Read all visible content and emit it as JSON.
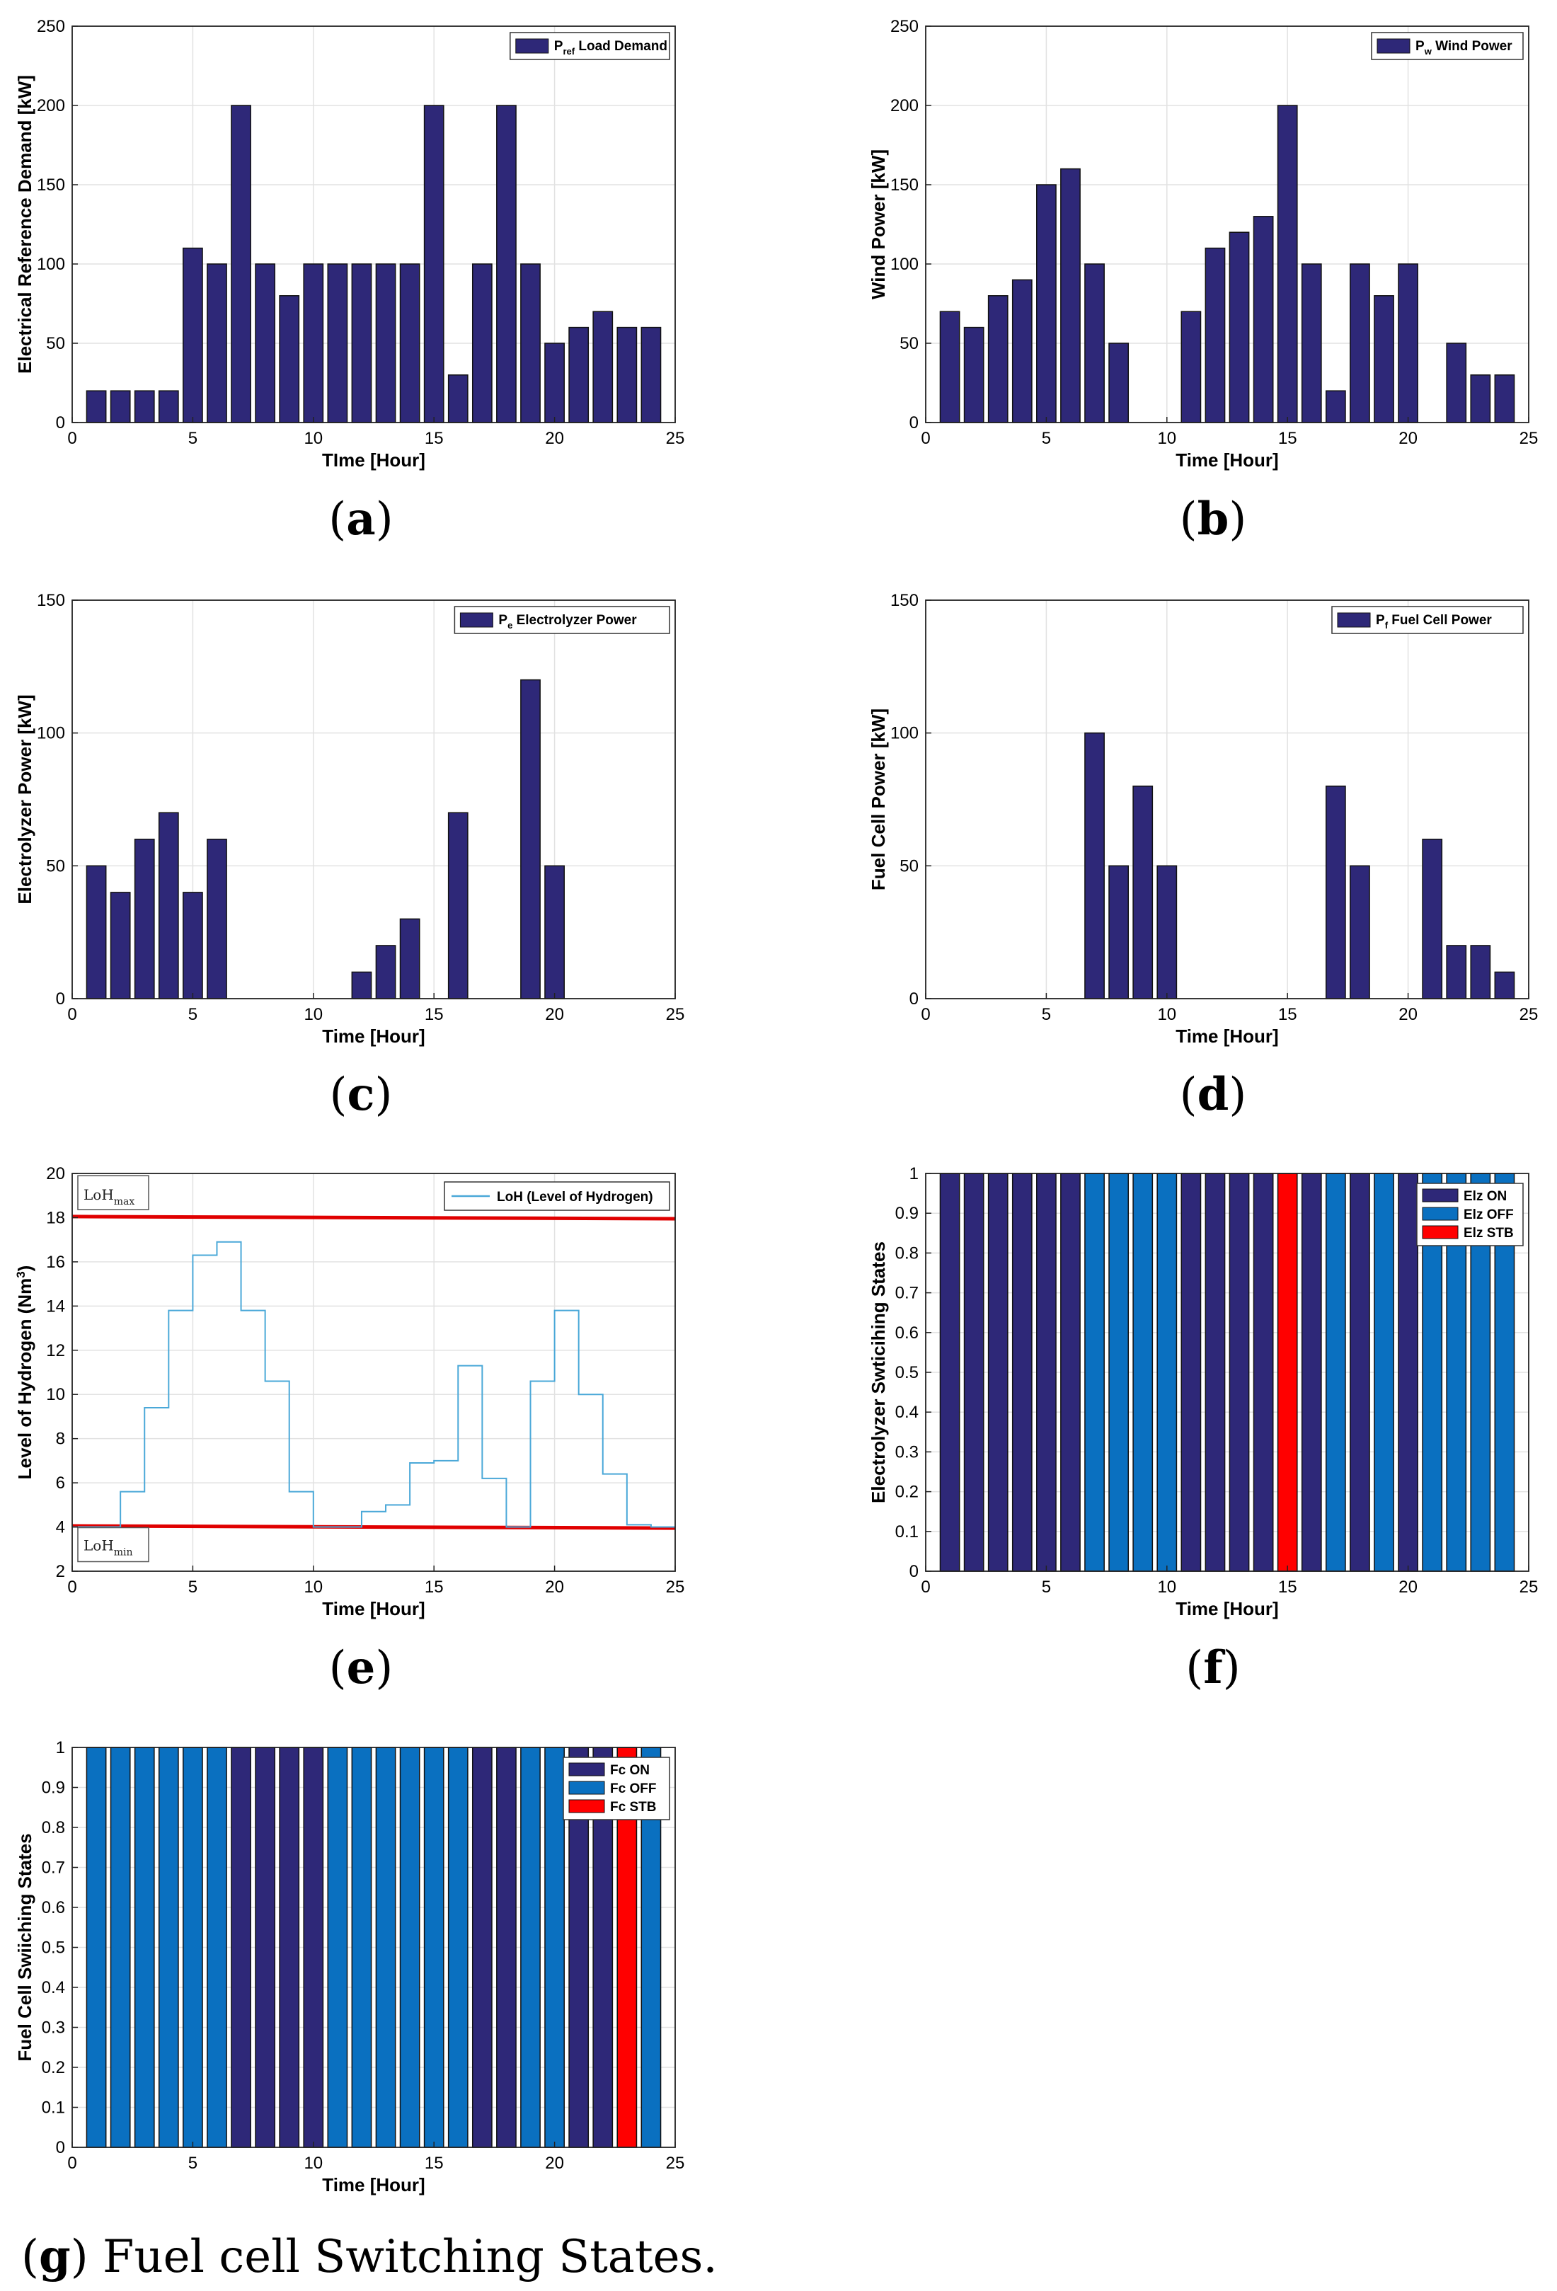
{
  "colors": {
    "bar": "#2e2878",
    "on": "#2e2878",
    "off": "#0a70c0",
    "stb": "#ff0000",
    "loh": "#4aa8d8",
    "limit": "#e00000"
  },
  "chart_data": [
    {
      "id": "a",
      "type": "bar",
      "caption_letter": "a",
      "caption_text": "",
      "title": "",
      "xlabel": "TIme [Hour]",
      "ylabel": "Electrical Reference Demand [kW]",
      "xlim": [
        0,
        25
      ],
      "ylim": [
        0,
        250
      ],
      "xticks": [
        0,
        5,
        10,
        15,
        20,
        25
      ],
      "yticks": [
        0,
        50,
        100,
        150,
        200,
        250
      ],
      "x": [
        1,
        2,
        3,
        4,
        5,
        6,
        7,
        8,
        9,
        10,
        11,
        12,
        13,
        14,
        15,
        16,
        17,
        18,
        19,
        20,
        21,
        22,
        23,
        24
      ],
      "values": [
        20,
        20,
        20,
        20,
        110,
        100,
        200,
        100,
        80,
        100,
        100,
        100,
        100,
        100,
        200,
        30,
        100,
        200,
        100,
        50,
        60,
        70,
        60,
        60
      ],
      "legend": {
        "position": "top-right",
        "symbol": "P",
        "subscript": "ref",
        "label": "Load Demand"
      }
    },
    {
      "id": "b",
      "type": "bar",
      "caption_letter": "b",
      "caption_text": "",
      "title": "",
      "xlabel": "Time [Hour]",
      "ylabel": "Wind Power [kW]",
      "xlim": [
        0,
        25
      ],
      "ylim": [
        0,
        250
      ],
      "xticks": [
        0,
        5,
        10,
        15,
        20,
        25
      ],
      "yticks": [
        0,
        50,
        100,
        150,
        200,
        250
      ],
      "x": [
        1,
        2,
        3,
        4,
        5,
        6,
        7,
        8,
        9,
        10,
        11,
        12,
        13,
        14,
        15,
        16,
        17,
        18,
        19,
        20,
        21,
        22,
        23,
        24
      ],
      "values": [
        70,
        60,
        80,
        90,
        150,
        160,
        100,
        50,
        0,
        0,
        70,
        110,
        120,
        130,
        200,
        100,
        20,
        100,
        80,
        100,
        0,
        50,
        30,
        30
      ],
      "legend": {
        "position": "top-right",
        "symbol": "P",
        "subscript": "w",
        "label": "Wind Power"
      }
    },
    {
      "id": "c",
      "type": "bar",
      "caption_letter": "c",
      "caption_text": "",
      "title": "",
      "xlabel": "Time [Hour]",
      "ylabel": "Electrolyzer Power [kW]",
      "xlim": [
        0,
        25
      ],
      "ylim": [
        0,
        150
      ],
      "xticks": [
        0,
        5,
        10,
        15,
        20,
        25
      ],
      "yticks": [
        0,
        50,
        100,
        150
      ],
      "x": [
        1,
        2,
        3,
        4,
        5,
        6,
        7,
        8,
        9,
        10,
        11,
        12,
        13,
        14,
        15,
        16,
        17,
        18,
        19,
        20,
        21,
        22,
        23,
        24
      ],
      "values": [
        50,
        40,
        60,
        70,
        40,
        60,
        0,
        0,
        0,
        0,
        0,
        10,
        20,
        30,
        0,
        70,
        0,
        0,
        120,
        50,
        0,
        0,
        0,
        0
      ],
      "legend": {
        "position": "top-right",
        "symbol": "P",
        "subscript": "e",
        "label": "Electrolyzer Power"
      }
    },
    {
      "id": "d",
      "type": "bar",
      "caption_letter": "d",
      "caption_text": "",
      "title": "",
      "xlabel": "Time [Hour]",
      "ylabel": "Fuel Cell Power [kW]",
      "xlim": [
        0,
        25
      ],
      "ylim": [
        0,
        150
      ],
      "xticks": [
        0,
        5,
        10,
        15,
        20,
        25
      ],
      "yticks": [
        0,
        50,
        100,
        150
      ],
      "x": [
        1,
        2,
        3,
        4,
        5,
        6,
        7,
        8,
        9,
        10,
        11,
        12,
        13,
        14,
        15,
        16,
        17,
        18,
        19,
        20,
        21,
        22,
        23,
        24
      ],
      "values": [
        0,
        0,
        0,
        0,
        0,
        0,
        100,
        50,
        80,
        50,
        0,
        0,
        0,
        0,
        0,
        0,
        80,
        50,
        0,
        0,
        60,
        20,
        20,
        10
      ],
      "legend": {
        "position": "top-right",
        "symbol": "P",
        "subscript": "f",
        "label": "Fuel Cell Power"
      }
    },
    {
      "id": "e",
      "type": "line",
      "caption_letter": "e",
      "caption_text": "",
      "title": "",
      "xlabel": "Time [Hour]",
      "ylabel": "Level of Hydrogen (Nm",
      "ylabel_sup": "3",
      "ylabel_end": ")",
      "xlim": [
        0,
        25
      ],
      "ylim": [
        2,
        20
      ],
      "xticks": [
        0,
        5,
        10,
        15,
        20,
        25
      ],
      "yticks": [
        2,
        4,
        6,
        8,
        10,
        12,
        14,
        16,
        18,
        20
      ],
      "step_x": [
        0,
        1,
        2,
        3,
        4,
        5,
        6,
        7,
        8,
        9,
        10,
        11,
        12,
        13,
        14,
        15,
        16,
        17,
        18,
        19,
        20,
        21,
        22,
        23,
        24,
        25
      ],
      "step_y": [
        4,
        4,
        5.6,
        9.4,
        13.8,
        16.3,
        16.9,
        13.8,
        10.6,
        5.6,
        4,
        4,
        4.7,
        5,
        6.9,
        7,
        11.3,
        6.2,
        4,
        10.6,
        13.8,
        10,
        6.4,
        4.1,
        4,
        4
      ],
      "max_line": {
        "y_start": 18.05,
        "y_end": 17.95
      },
      "min_line": {
        "y_start": 4.05,
        "y_end": 3.95
      },
      "annotations": {
        "max_base": "LoH",
        "max_sub": "max",
        "min_base": "LoH",
        "min_sub": "min"
      },
      "legend": {
        "position": "top-right",
        "label": "LoH (Level of Hydrogen)"
      }
    },
    {
      "id": "f",
      "type": "bar",
      "caption_letter": "f",
      "caption_text": "",
      "title": "",
      "xlabel": "Time [Hour]",
      "ylabel": "Electrolyzer Swticihing States",
      "xlim": [
        0,
        25
      ],
      "ylim": [
        0,
        1
      ],
      "xticks": [
        0,
        5,
        10,
        15,
        20,
        25
      ],
      "yticks": [
        0,
        0.1,
        0.2,
        0.3,
        0.4,
        0.5,
        0.6,
        0.7,
        0.8,
        0.9,
        1
      ],
      "x": [
        1,
        2,
        3,
        4,
        5,
        6,
        7,
        8,
        9,
        10,
        11,
        12,
        13,
        14,
        15,
        16,
        17,
        18,
        19,
        20,
        21,
        22,
        23,
        24
      ],
      "values": [
        1,
        1,
        1,
        1,
        1,
        1,
        1,
        1,
        1,
        1,
        1,
        1,
        1,
        1,
        1,
        1,
        1,
        1,
        1,
        1,
        1,
        1,
        1,
        1
      ],
      "states": [
        "on",
        "on",
        "on",
        "on",
        "on",
        "on",
        "off",
        "off",
        "off",
        "off",
        "on",
        "on",
        "on",
        "on",
        "stb",
        "on",
        "off",
        "on",
        "off",
        "on",
        "off",
        "off",
        "off",
        "off"
      ],
      "legend": {
        "position": "top-right",
        "items": [
          {
            "state": "on",
            "label": "Elz ON"
          },
          {
            "state": "off",
            "label": "Elz OFF"
          },
          {
            "state": "stb",
            "label": "Elz STB"
          }
        ]
      }
    },
    {
      "id": "g",
      "type": "bar",
      "caption_letter": "g",
      "caption_text": " Fuel cell Switching States.",
      "title": "",
      "xlabel": "Time [Hour]",
      "ylabel": "Fuel Cell Swiiching States",
      "xlim": [
        0,
        25
      ],
      "ylim": [
        0,
        1
      ],
      "xticks": [
        0,
        5,
        10,
        15,
        20,
        25
      ],
      "yticks": [
        0,
        0.1,
        0.2,
        0.3,
        0.4,
        0.5,
        0.6,
        0.7,
        0.8,
        0.9,
        1
      ],
      "x": [
        1,
        2,
        3,
        4,
        5,
        6,
        7,
        8,
        9,
        10,
        11,
        12,
        13,
        14,
        15,
        16,
        17,
        18,
        19,
        20,
        21,
        22,
        23,
        24
      ],
      "values": [
        1,
        1,
        1,
        1,
        1,
        1,
        1,
        1,
        1,
        1,
        1,
        1,
        1,
        1,
        1,
        1,
        1,
        1,
        1,
        1,
        1,
        1,
        1,
        1
      ],
      "states": [
        "off",
        "off",
        "off",
        "off",
        "off",
        "off",
        "on",
        "on",
        "on",
        "on",
        "off",
        "off",
        "off",
        "off",
        "off",
        "off",
        "on",
        "on",
        "off",
        "off",
        "on",
        "on",
        "stb",
        "off"
      ],
      "legend": {
        "position": "top-right",
        "items": [
          {
            "state": "on",
            "label": "Fc ON"
          },
          {
            "state": "off",
            "label": "Fc OFF"
          },
          {
            "state": "stb",
            "label": "Fc STB"
          }
        ]
      }
    }
  ]
}
